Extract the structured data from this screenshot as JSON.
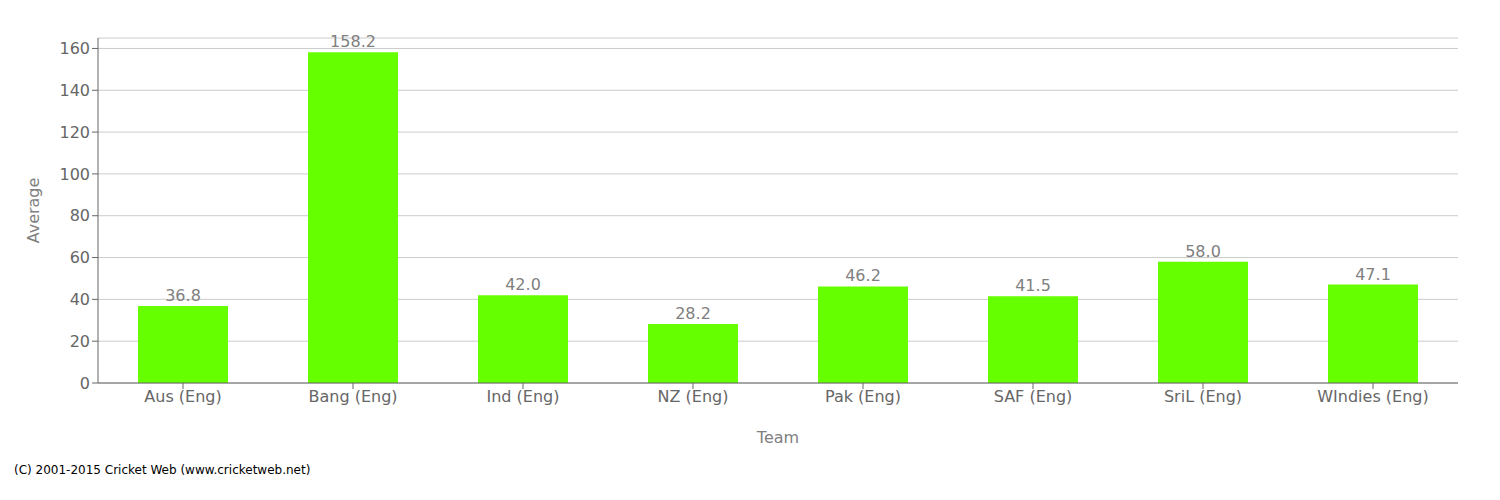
{
  "chart_data": {
    "type": "bar",
    "categories": [
      "Aus (Eng)",
      "Bang (Eng)",
      "Ind (Eng)",
      "NZ (Eng)",
      "Pak (Eng)",
      "SAF (Eng)",
      "SriL (Eng)",
      "WIndies (Eng)"
    ],
    "values": [
      36.8,
      158.2,
      42.0,
      28.2,
      46.2,
      41.5,
      58.0,
      47.1
    ],
    "value_labels": [
      "36.8",
      "158.2",
      "42.0",
      "28.2",
      "46.2",
      "41.5",
      "58.0",
      "47.1"
    ],
    "data_labels": true,
    "color": "#66FF00",
    "xlabel": "Team",
    "ylabel": "Average",
    "ylim": [
      0,
      165
    ],
    "yticks": [
      0,
      20,
      40,
      60,
      80,
      100,
      120,
      140,
      160
    ],
    "grid": true,
    "annotations": [
      "(C) 2001-2015 Cricket Web (www.cricketweb.net)"
    ]
  }
}
